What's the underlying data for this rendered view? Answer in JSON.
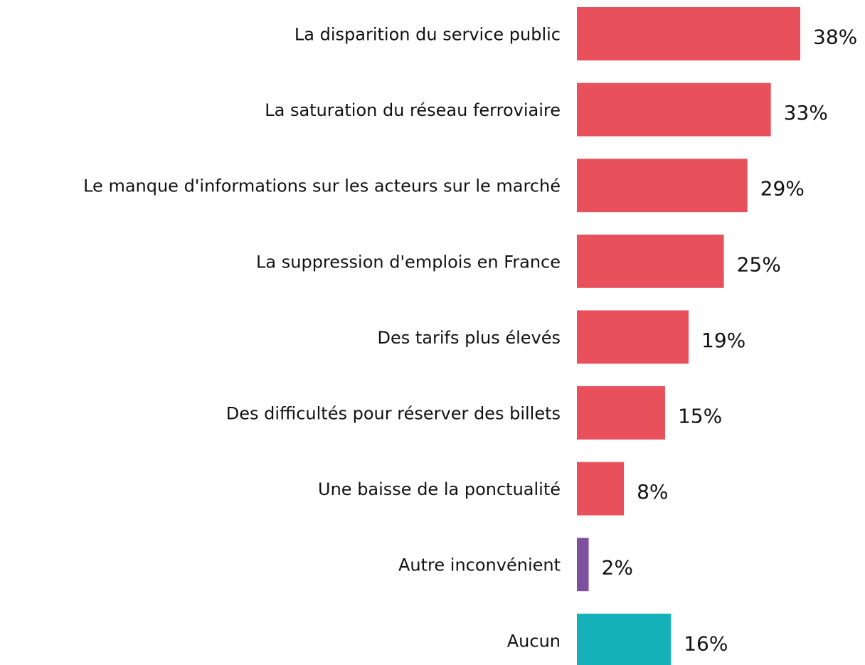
{
  "chart_data": {
    "type": "barh",
    "categories": [
      "La disparition du service public",
      "La saturation du réseau ferroviaire",
      "Le manque d'informations sur les acteurs sur le marché",
      "La suppression d'emplois en France",
      "Des tarifs plus élevés",
      "Des difficultés pour réserver des billets",
      "Une baisse de la ponctualité",
      "Autre inconvénient",
      "Aucun"
    ],
    "values": [
      38,
      33,
      29,
      25,
      19,
      15,
      8,
      2,
      16
    ],
    "value_labels": [
      "38%",
      "33%",
      "29%",
      "25%",
      "19%",
      "15%",
      "8%",
      "2%",
      "16%"
    ],
    "colors": [
      "#e8505b",
      "#e8505b",
      "#e8505b",
      "#e8505b",
      "#e8505b",
      "#e8505b",
      "#e8505b",
      "#7f4f9f",
      "#14b1b8"
    ]
  }
}
